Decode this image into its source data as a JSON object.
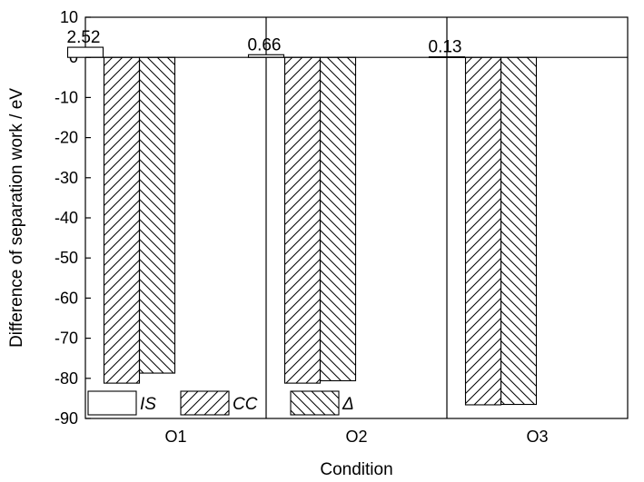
{
  "chart_data": {
    "type": "bar",
    "categories": [
      "O1",
      "O2",
      "O3"
    ],
    "series": [
      {
        "name": "IS",
        "values": [
          2.52,
          0.66,
          0.13
        ],
        "pattern": "none"
      },
      {
        "name": "CC",
        "values": [
          -81.2,
          -81.2,
          -86.6
        ],
        "pattern": "forward-hatch"
      },
      {
        "name": "Δ",
        "values": [
          -78.7,
          -80.6,
          -86.5
        ],
        "pattern": "back-hatch"
      }
    ],
    "data_labels": [
      "2.52",
      "0.66",
      "0.13"
    ],
    "ylim": [
      -90,
      10
    ],
    "yticks": [
      10,
      0,
      -10,
      -20,
      -30,
      -40,
      -50,
      -60,
      -70,
      -80,
      -90
    ],
    "ytick_labels": [
      "10",
      "0",
      "-10",
      "-20",
      "-30",
      "-40",
      "-50",
      "-60",
      "-70",
      "-80",
      "-90"
    ],
    "xlabel": "Condition",
    "ylabel": "Difference of separation work / eV",
    "grid": false,
    "legend_position": "bottom-left",
    "colors": {
      "stroke": "#000000",
      "fill": "#ffffff"
    }
  }
}
